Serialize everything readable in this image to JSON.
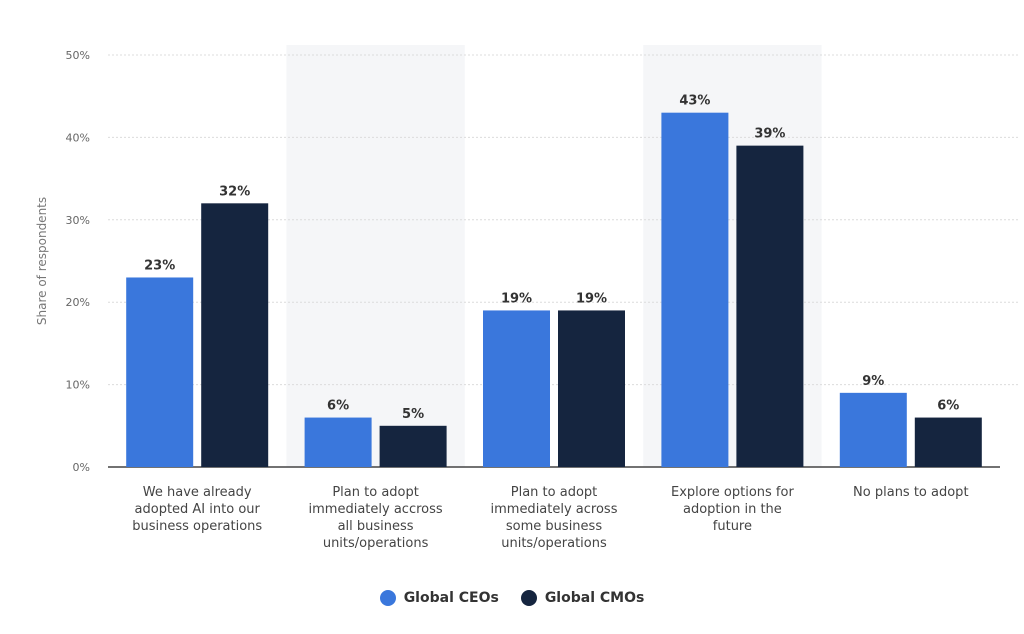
{
  "chart_data": {
    "type": "bar",
    "title": "",
    "xlabel": "",
    "ylabel": "Share of respondents",
    "ylim": [
      0,
      50
    ],
    "yticks": [
      "0%",
      "10%",
      "20%",
      "30%",
      "40%",
      "50%"
    ],
    "grid": true,
    "legend_placement": "bottom-center",
    "categories": [
      [
        "We have already",
        "adopted AI into our",
        "business operations"
      ],
      [
        "Plan to adopt",
        "immediately accross",
        "all business",
        "units/operations"
      ],
      [
        "Plan to adopt",
        "immediately across",
        "some business",
        "units/operations"
      ],
      [
        "Explore options for",
        "adoption in the",
        "future"
      ],
      [
        "No plans to adopt"
      ]
    ],
    "series": [
      {
        "name": "Global CEOs",
        "color": "#3a77dc",
        "values": [
          23,
          6,
          19,
          43,
          9
        ]
      },
      {
        "name": "Global CMOs",
        "color": "#15253f",
        "values": [
          32,
          5,
          19,
          39,
          6
        ]
      }
    ],
    "value_suffix": "%"
  }
}
